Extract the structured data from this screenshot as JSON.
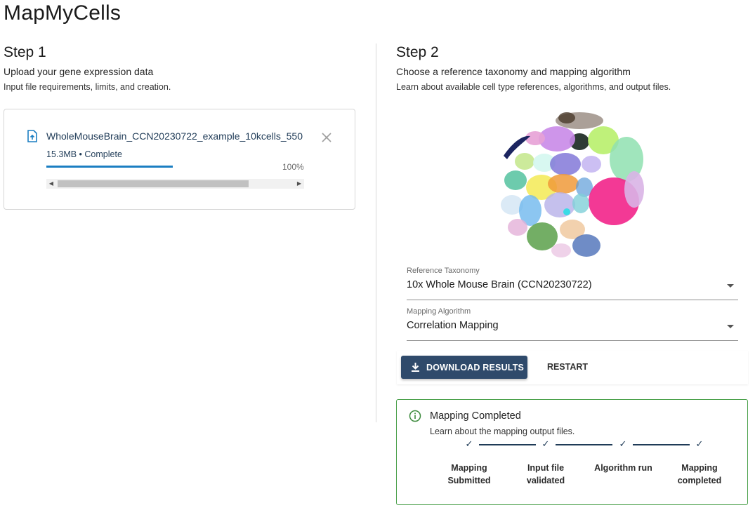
{
  "app": {
    "title": "MapMyCells"
  },
  "step1": {
    "title": "Step 1",
    "subtitle": "Upload your gene expression data",
    "link": "Input file requirements, limits, and creation.",
    "file": {
      "name": "WholeMouseBrain_CCN20230722_example_10kcells_550",
      "meta": "15.3MB • Complete",
      "progress_percent": 100,
      "progress_label": "100%"
    }
  },
  "step2": {
    "title": "Step 2",
    "subtitle": "Choose a reference taxonomy and mapping algorithm",
    "link": "Learn about available cell type references, algorithms, and output files.",
    "taxonomy": {
      "label": "Reference Taxonomy",
      "value": "10x Whole Mouse Brain (CCN20230722)"
    },
    "algorithm": {
      "label": "Mapping Algorithm",
      "value": "Correlation Mapping"
    },
    "download_label": "DOWNLOAD RESULTS",
    "restart_label": "RESTART"
  },
  "status": {
    "title": "Mapping Completed",
    "subtitle": "Learn about the mapping output files.",
    "steps": [
      {
        "label": "Mapping Submitted",
        "done": true
      },
      {
        "label": "Input file validated",
        "done": true
      },
      {
        "label": "Algorithm run",
        "done": true
      },
      {
        "label": "Mapping completed",
        "done": true
      }
    ],
    "colors": {
      "border": "#4aa04a",
      "info_icon": "#3c8a3c"
    }
  },
  "colors": {
    "accent": "#2f4a6b",
    "progress": "#1b7ec2",
    "file_icon": "#1b7ec2"
  },
  "icons": {
    "file": "file-upload-icon",
    "close": "close-icon",
    "download": "download-icon",
    "info": "info-icon",
    "check": "check-icon",
    "caret": "chevron-down-icon",
    "scroll_left": "scroll-left-icon",
    "scroll_right": "scroll-right-icon"
  }
}
